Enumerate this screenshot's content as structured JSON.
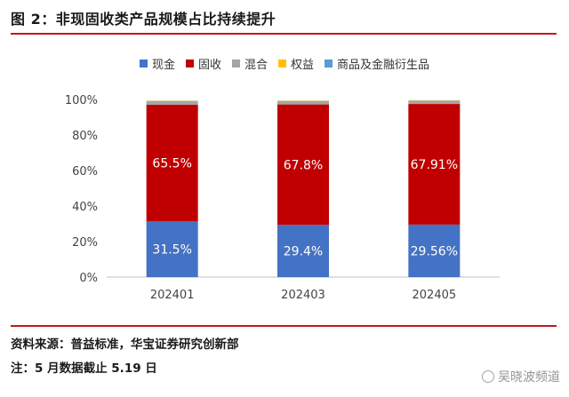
{
  "figure": {
    "title": "图 2：非现固收类产品规模占比持续提升",
    "source": "资料来源：普益标准，华宝证券研究创新部",
    "note": "注：5 月数据截止 5.19 日",
    "watermark": "吴晓波频道"
  },
  "colors": {
    "现金": "#4472c4",
    "固收": "#c00000",
    "混合": "#a5a5a5",
    "权益": "#ffc000",
    "商品及金融衍生品": "#5b9bd5",
    "rule": "#c4161c"
  },
  "chart_data": {
    "type": "bar",
    "stacked": true,
    "categories": [
      "202401",
      "202403",
      "202405"
    ],
    "series": [
      {
        "name": "现金",
        "values": [
          31.5,
          29.4,
          29.56
        ]
      },
      {
        "name": "固收",
        "values": [
          65.5,
          67.8,
          67.91
        ]
      },
      {
        "name": "混合",
        "values": [
          2.0,
          1.9,
          1.8
        ]
      },
      {
        "name": "权益",
        "values": [
          0.2,
          0.2,
          0.2
        ]
      },
      {
        "name": "商品及金融衍生品",
        "values": [
          0.1,
          0.1,
          0.1
        ]
      }
    ],
    "data_labels": {
      "现金": [
        "31.5%",
        "29.4%",
        "29.56%"
      ],
      "固收": [
        "65.5%",
        "67.8%",
        "67.91%"
      ]
    },
    "y_ticks": [
      "0%",
      "20%",
      "40%",
      "60%",
      "80%",
      "100%"
    ],
    "ylim": [
      0,
      100
    ],
    "legend_position": "top",
    "grid": false
  }
}
